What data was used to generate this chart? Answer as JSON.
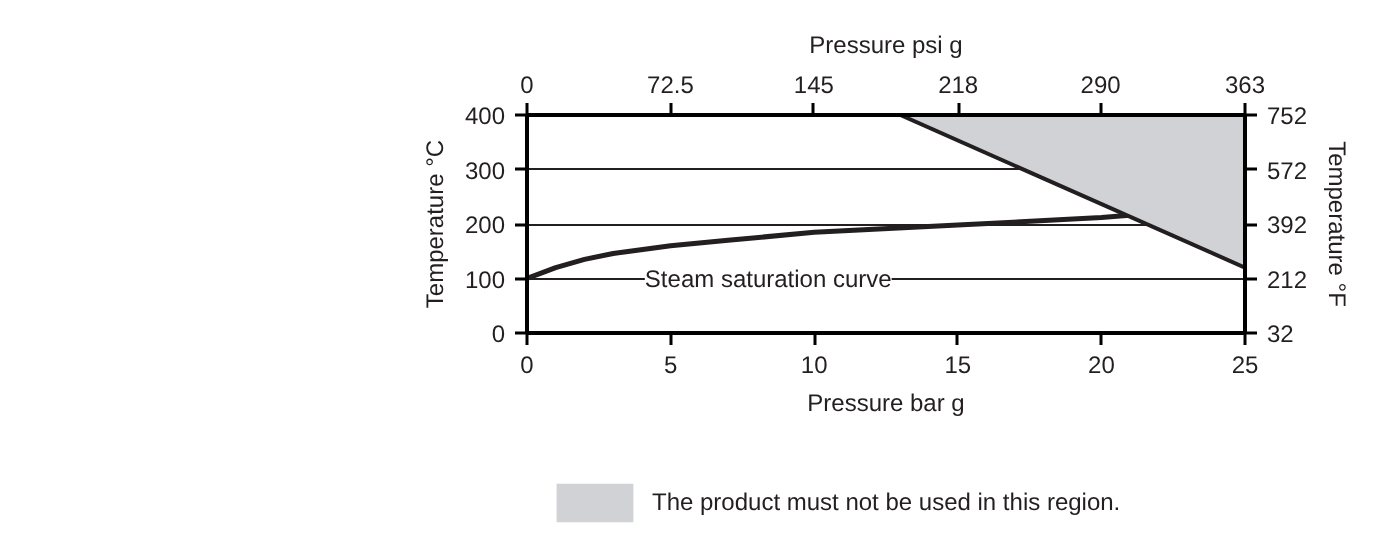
{
  "chart_data": {
    "type": "line",
    "xlabel": "Pressure bar g",
    "x2label": "Pressure psi g",
    "ylabel": "Temperature °C",
    "y2label": "Temperature °F",
    "xlim": [
      0,
      25
    ],
    "xticks": [
      0,
      5,
      10,
      15,
      20,
      25
    ],
    "x2lim": [
      0,
      363
    ],
    "x2ticks": [
      0,
      72.5,
      145,
      218,
      290,
      363
    ],
    "ylim": [
      0,
      400
    ],
    "yticks": [
      0,
      100,
      200,
      300,
      400
    ],
    "y2lim": [
      32,
      752
    ],
    "y2ticks": [
      32,
      212,
      392,
      572,
      752
    ],
    "grid": true,
    "legend": "bottom",
    "marker": "none",
    "line_style": "solid",
    "series": [
      {
        "color": "#231f20",
        "x": [
          0,
          1,
          2,
          3,
          5,
          7,
          10,
          15,
          20,
          21.2
        ],
        "values": [
          100,
          120,
          135,
          146,
          160,
          170,
          185,
          198,
          212,
          217
        ]
      },
      {
        "type": "area",
        "name": "The product must not be used in this region.",
        "color": "#d1d2d6",
        "x": [
          13,
          25
        ],
        "values": [
          400,
          120
        ]
      }
    ],
    "annotations": [
      "Steam saturation curve"
    ]
  }
}
